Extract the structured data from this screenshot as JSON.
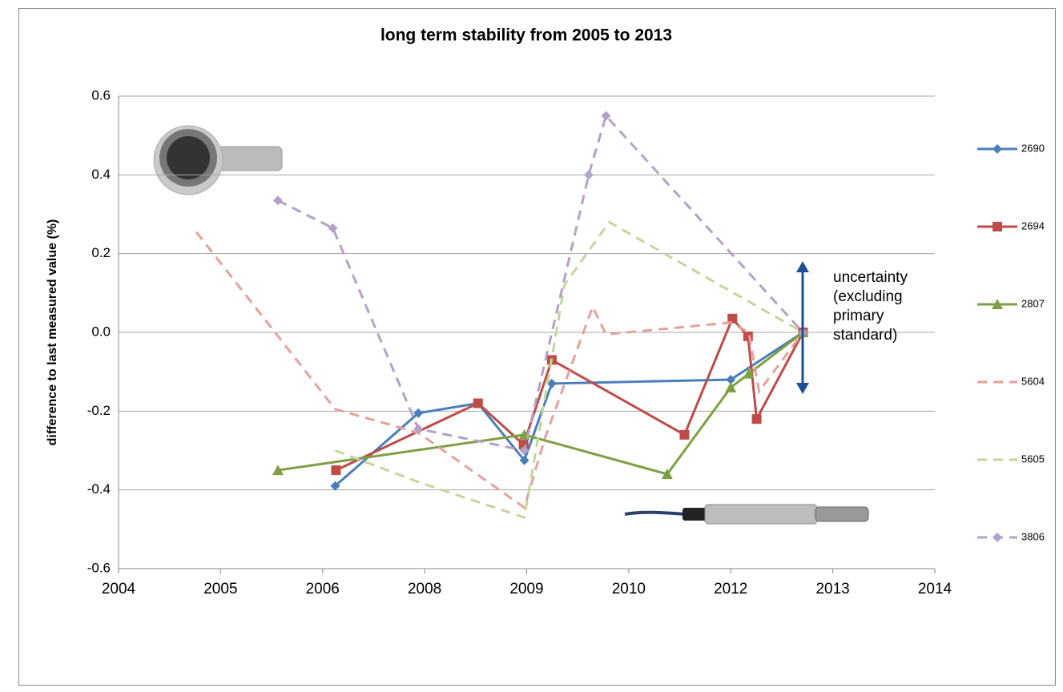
{
  "chart_data": {
    "type": "scatter-line",
    "title": "long term stability from 2005 to 2013",
    "y_label": "difference to last measured value  (%)",
    "xlim": [
      2004.3,
      2014.7
    ],
    "xticks": [
      {
        "value": 2004.3,
        "label": "2004"
      },
      {
        "value": 2005.6,
        "label": "2005"
      },
      {
        "value": 2006.9,
        "label": "2006"
      },
      {
        "value": 2008.2,
        "label": "2008"
      },
      {
        "value": 2009.5,
        "label": "2009"
      },
      {
        "value": 2010.8,
        "label": "2010"
      },
      {
        "value": 2012.1,
        "label": "2012"
      },
      {
        "value": 2013.4,
        "label": "2013"
      },
      {
        "value": 2014.7,
        "label": "2014"
      }
    ],
    "ylim": [
      -0.6,
      0.6
    ],
    "yticks": [
      -0.6,
      -0.4,
      -0.2,
      {
        "value": 0,
        "label": "0.0"
      },
      0.2,
      0.4,
      0.6
    ],
    "grid": true,
    "legend": "right",
    "annotation": [
      "uncertainty",
      "(excluding",
      "primary",
      "standard)"
    ],
    "series": [
      {
        "name": "2690",
        "color": "#4a7ebb",
        "dash": false,
        "marker": "diamond",
        "x": [
          2007.06,
          2008.12,
          2008.88,
          2009.47,
          2009.82,
          2012.1,
          2013.02
        ],
        "values": [
          -0.39,
          -0.205,
          -0.18,
          -0.325,
          -0.13,
          -0.12,
          0
        ]
      },
      {
        "name": "2694",
        "color": "#be4b48",
        "dash": false,
        "marker": "square",
        "x": [
          2007.07,
          2008.88,
          2009.46,
          2009.82,
          2011.51,
          2012.12,
          2012.32,
          2012.43,
          2013.02
        ],
        "values": [
          -0.35,
          -0.18,
          -0.285,
          -0.07,
          -0.26,
          0.035,
          -0.01,
          -0.22,
          0
        ]
      },
      {
        "name": "2807",
        "color": "#7ea043",
        "dash": false,
        "marker": "triangle",
        "x": [
          2006.33,
          2009.47,
          2011.29,
          2012.1,
          2012.33,
          2013.02
        ],
        "values": [
          -0.35,
          -0.26,
          -0.36,
          -0.14,
          -0.105,
          0
        ]
      },
      {
        "name": "5604",
        "color": "#e6a09e",
        "dash": true,
        "marker": null,
        "x": [
          2005.29,
          2007.06,
          2008.12,
          2009.47,
          2009.73,
          2010.34,
          2010.51,
          2012.1,
          2012.33,
          2012.46,
          2013.02
        ],
        "values": [
          0.255,
          -0.195,
          -0.255,
          -0.445,
          -0.27,
          0.065,
          -0.005,
          0.025,
          0,
          -0.15,
          0
        ]
      },
      {
        "name": "5605",
        "color": "#c3d69b",
        "dash": true,
        "marker": null,
        "x": [
          2007.06,
          2008.12,
          2009.47,
          2009.98,
          2010.55,
          2013.02
        ],
        "values": [
          -0.3,
          -0.38,
          -0.47,
          0.12,
          0.28,
          0
        ]
      },
      {
        "name": "3806",
        "color": "#b3a2c7",
        "dash": true,
        "marker": "diamond",
        "x": [
          2006.33,
          2007.03,
          2008.12,
          2009.47,
          2010.29,
          2010.51,
          2013.02
        ],
        "values": [
          0.335,
          0.265,
          -0.245,
          -0.3,
          0.4,
          0.55,
          0
        ]
      }
    ]
  }
}
